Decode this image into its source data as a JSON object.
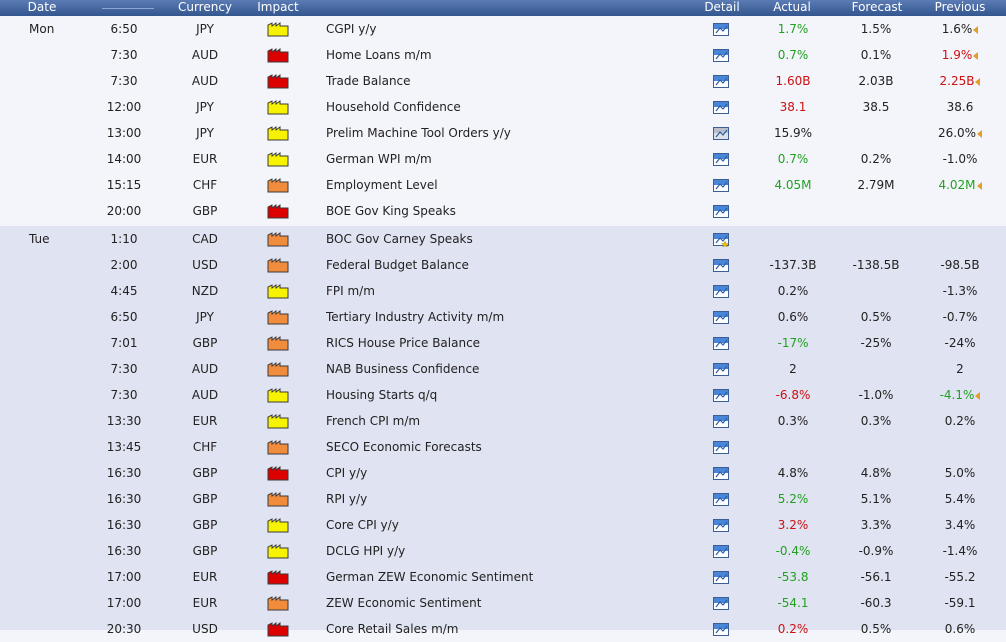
{
  "header": {
    "date": "Date",
    "currency": "Currency",
    "impact": "Impact",
    "detail": "Detail",
    "actual": "Actual",
    "forecast": "Forecast",
    "previous": "Previous"
  },
  "colors": {
    "good": "#22a022",
    "bad": "#cc1111",
    "neutral": "#222222",
    "impact_high": "#dd0000",
    "impact_medium": "#f08c3c",
    "impact_low": "#f6f200"
  },
  "days": [
    {
      "label": "Mon",
      "events": [
        {
          "time": "6:50",
          "currency": "JPY",
          "impact": "low",
          "event": "CGPI y/y",
          "detail": "detail",
          "actual": "1.7%",
          "actual_tone": "good",
          "forecast": "1.5%",
          "previous": "1.6%",
          "previous_tone": "neutral",
          "previous_revised": true
        },
        {
          "time": "7:30",
          "currency": "AUD",
          "impact": "high",
          "event": "Home Loans m/m",
          "detail": "detail",
          "actual": "0.7%",
          "actual_tone": "good",
          "forecast": "0.1%",
          "previous": "1.9%",
          "previous_tone": "bad",
          "previous_revised": true
        },
        {
          "time": "7:30",
          "currency": "AUD",
          "impact": "high",
          "event": "Trade Balance",
          "detail": "detail",
          "actual": "1.60B",
          "actual_tone": "bad",
          "forecast": "2.03B",
          "previous": "2.25B",
          "previous_tone": "bad",
          "previous_revised": true
        },
        {
          "time": "12:00",
          "currency": "JPY",
          "impact": "low",
          "event": "Household Confidence",
          "detail": "detail",
          "actual": "38.1",
          "actual_tone": "bad",
          "forecast": "38.5",
          "previous": "38.6",
          "previous_tone": "neutral",
          "previous_revised": false
        },
        {
          "time": "13:00",
          "currency": "JPY",
          "impact": "low",
          "event": "Prelim Machine Tool Orders y/y",
          "detail": "detail-gray",
          "actual": "15.9%",
          "actual_tone": "neutral",
          "forecast": "",
          "previous": "26.0%",
          "previous_tone": "neutral",
          "previous_revised": true
        },
        {
          "time": "14:00",
          "currency": "EUR",
          "impact": "low",
          "event": "German WPI m/m",
          "detail": "detail",
          "actual": "0.7%",
          "actual_tone": "good",
          "forecast": "0.2%",
          "previous": "-1.0%",
          "previous_tone": "neutral",
          "previous_revised": false
        },
        {
          "time": "15:15",
          "currency": "CHF",
          "impact": "medium",
          "event": "Employment Level",
          "detail": "detail",
          "actual": "4.05M",
          "actual_tone": "good",
          "forecast": "2.79M",
          "previous": "4.02M",
          "previous_tone": "good",
          "previous_revised": true
        },
        {
          "time": "20:00",
          "currency": "GBP",
          "impact": "high",
          "event": "BOE Gov King Speaks",
          "detail": "detail",
          "actual": "",
          "actual_tone": "neutral",
          "forecast": "",
          "previous": "",
          "previous_tone": "neutral",
          "previous_revised": false
        }
      ]
    },
    {
      "label": "Tue",
      "events": [
        {
          "time": "1:10",
          "currency": "CAD",
          "impact": "medium",
          "event": "BOC Gov Carney Speaks",
          "detail": "detail-star",
          "actual": "",
          "actual_tone": "neutral",
          "forecast": "",
          "previous": "",
          "previous_tone": "neutral",
          "previous_revised": false
        },
        {
          "time": "2:00",
          "currency": "USD",
          "impact": "medium",
          "event": "Federal Budget Balance",
          "detail": "detail",
          "actual": "-137.3B",
          "actual_tone": "neutral",
          "forecast": "-138.5B",
          "previous": "-98.5B",
          "previous_tone": "neutral",
          "previous_revised": false
        },
        {
          "time": "4:45",
          "currency": "NZD",
          "impact": "low",
          "event": "FPI m/m",
          "detail": "detail",
          "actual": "0.2%",
          "actual_tone": "neutral",
          "forecast": "",
          "previous": "-1.3%",
          "previous_tone": "neutral",
          "previous_revised": false
        },
        {
          "time": "6:50",
          "currency": "JPY",
          "impact": "medium",
          "event": "Tertiary Industry Activity m/m",
          "detail": "detail",
          "actual": "0.6%",
          "actual_tone": "neutral",
          "forecast": "0.5%",
          "previous": "-0.7%",
          "previous_tone": "neutral",
          "previous_revised": false
        },
        {
          "time": "7:01",
          "currency": "GBP",
          "impact": "medium",
          "event": "RICS House Price Balance",
          "detail": "detail",
          "actual": "-17%",
          "actual_tone": "good",
          "forecast": "-25%",
          "previous": "-24%",
          "previous_tone": "neutral",
          "previous_revised": false
        },
        {
          "time": "7:30",
          "currency": "AUD",
          "impact": "medium",
          "event": "NAB Business Confidence",
          "detail": "detail",
          "actual": "2",
          "actual_tone": "neutral",
          "forecast": "",
          "previous": "2",
          "previous_tone": "neutral",
          "previous_revised": false
        },
        {
          "time": "7:30",
          "currency": "AUD",
          "impact": "low",
          "event": "Housing Starts q/q",
          "detail": "detail",
          "actual": "-6.8%",
          "actual_tone": "bad",
          "forecast": "-1.0%",
          "previous": "-4.1%",
          "previous_tone": "good",
          "previous_revised": true
        },
        {
          "time": "13:30",
          "currency": "EUR",
          "impact": "low",
          "event": "French CPI m/m",
          "detail": "detail",
          "actual": "0.3%",
          "actual_tone": "neutral",
          "forecast": "0.3%",
          "previous": "0.2%",
          "previous_tone": "neutral",
          "previous_revised": false
        },
        {
          "time": "13:45",
          "currency": "CHF",
          "impact": "medium",
          "event": "SECO Economic Forecasts",
          "detail": "detail",
          "actual": "",
          "actual_tone": "neutral",
          "forecast": "",
          "previous": "",
          "previous_tone": "neutral",
          "previous_revised": false
        },
        {
          "time": "16:30",
          "currency": "GBP",
          "impact": "high",
          "event": "CPI y/y",
          "detail": "detail",
          "actual": "4.8%",
          "actual_tone": "neutral",
          "forecast": "4.8%",
          "previous": "5.0%",
          "previous_tone": "neutral",
          "previous_revised": false
        },
        {
          "time": "16:30",
          "currency": "GBP",
          "impact": "medium",
          "event": "RPI y/y",
          "detail": "detail",
          "actual": "5.2%",
          "actual_tone": "good",
          "forecast": "5.1%",
          "previous": "5.4%",
          "previous_tone": "neutral",
          "previous_revised": false
        },
        {
          "time": "16:30",
          "currency": "GBP",
          "impact": "low",
          "event": "Core CPI y/y",
          "detail": "detail",
          "actual": "3.2%",
          "actual_tone": "bad",
          "forecast": "3.3%",
          "previous": "3.4%",
          "previous_tone": "neutral",
          "previous_revised": false
        },
        {
          "time": "16:30",
          "currency": "GBP",
          "impact": "low",
          "event": "DCLG HPI y/y",
          "detail": "detail",
          "actual": "-0.4%",
          "actual_tone": "good",
          "forecast": "-0.9%",
          "previous": "-1.4%",
          "previous_tone": "neutral",
          "previous_revised": false
        },
        {
          "time": "17:00",
          "currency": "EUR",
          "impact": "high",
          "event": "German ZEW Economic Sentiment",
          "detail": "detail",
          "actual": "-53.8",
          "actual_tone": "good",
          "forecast": "-56.1",
          "previous": "-55.2",
          "previous_tone": "neutral",
          "previous_revised": false
        },
        {
          "time": "17:00",
          "currency": "EUR",
          "impact": "medium",
          "event": "ZEW Economic Sentiment",
          "detail": "detail",
          "actual": "-54.1",
          "actual_tone": "good",
          "forecast": "-60.3",
          "previous": "-59.1",
          "previous_tone": "neutral",
          "previous_revised": false
        },
        {
          "time": "20:30",
          "currency": "USD",
          "impact": "high",
          "event": "Core Retail Sales m/m",
          "detail": "detail",
          "actual": "0.2%",
          "actual_tone": "bad",
          "forecast": "0.5%",
          "previous": "0.6%",
          "previous_tone": "neutral",
          "previous_revised": false
        }
      ]
    }
  ]
}
